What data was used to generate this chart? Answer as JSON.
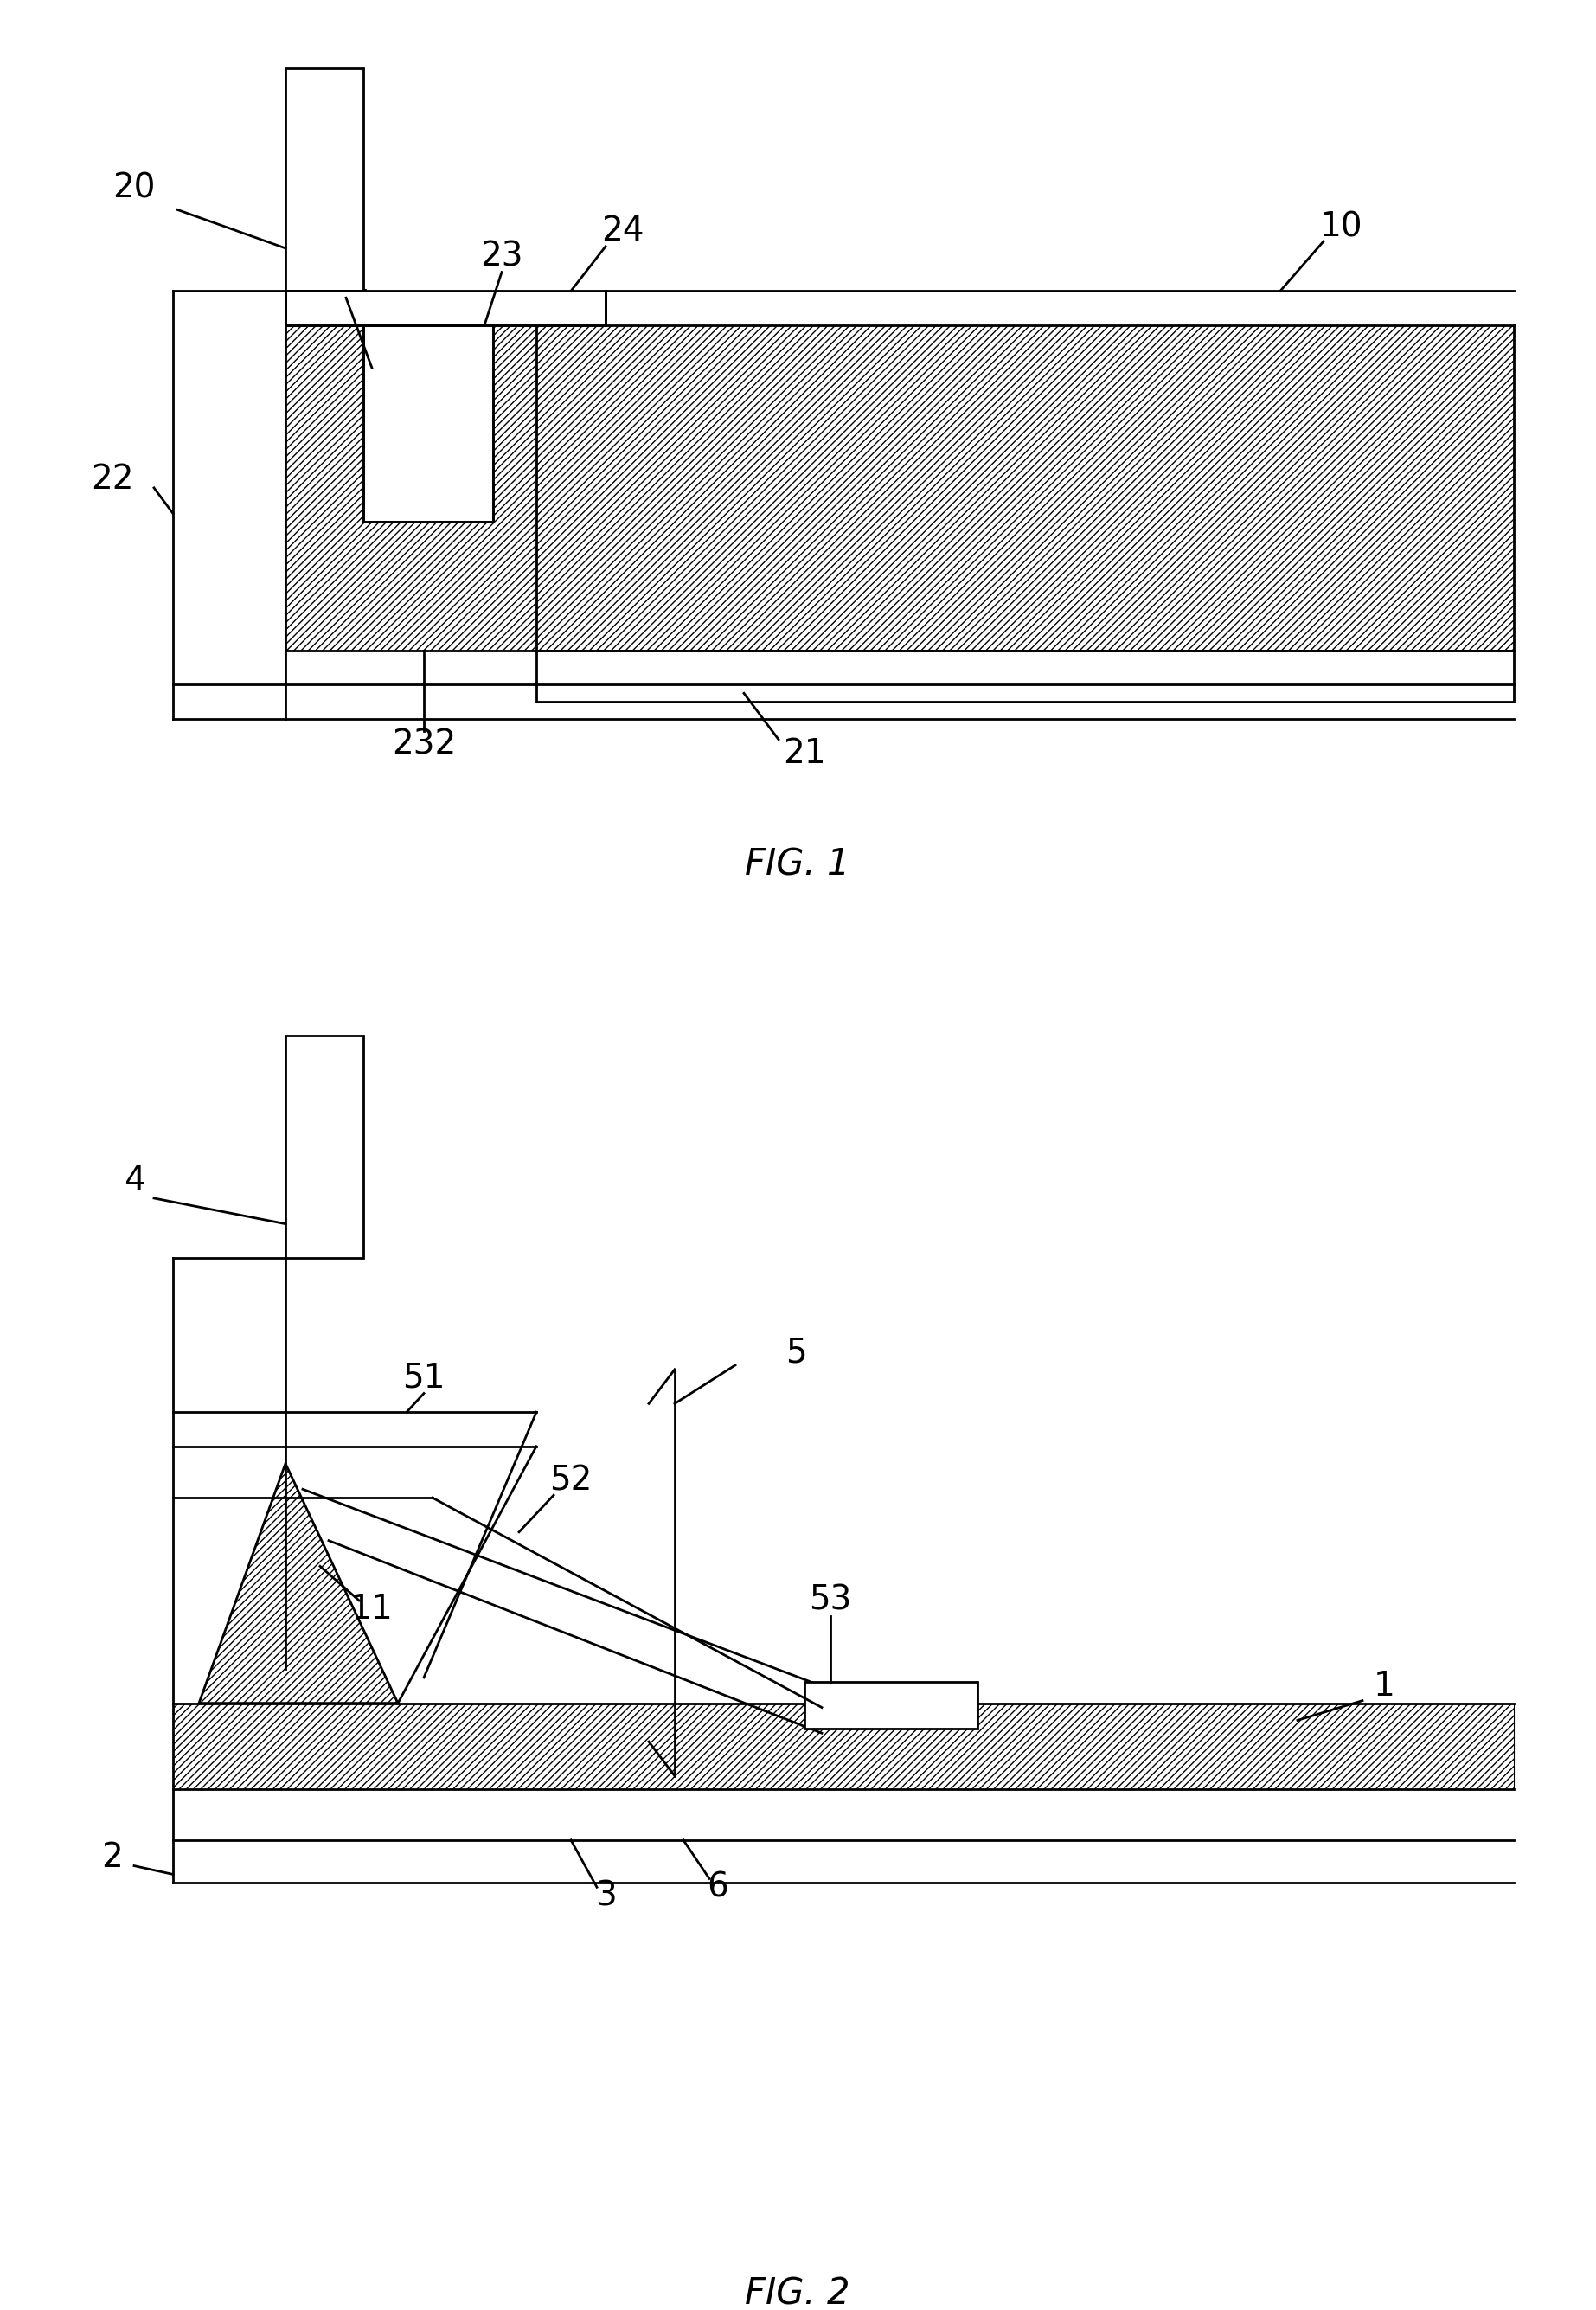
{
  "fig_width": 18.45,
  "fig_height": 26.7,
  "bg_color": "#ffffff",
  "line_color": "#000000",
  "fig1_caption": "FIG. 1",
  "fig2_caption": "FIG. 2"
}
